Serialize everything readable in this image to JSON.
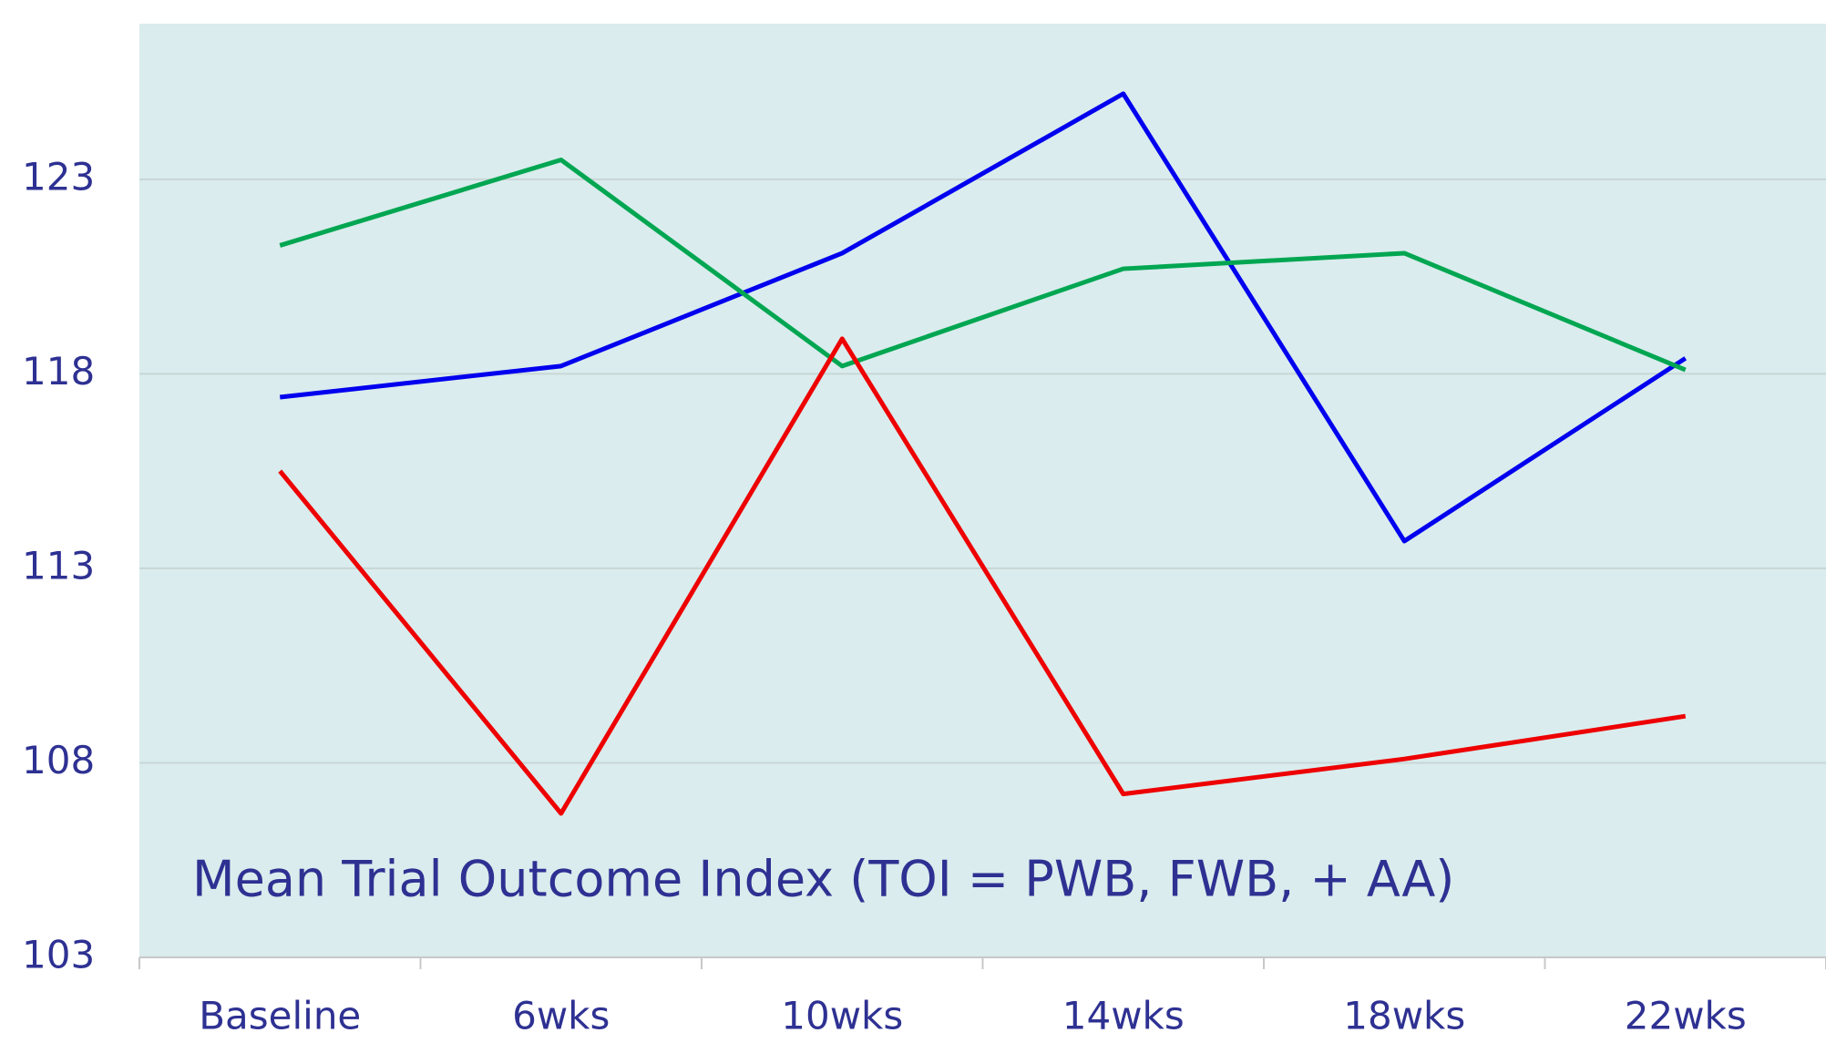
{
  "chart_data": {
    "type": "line",
    "annotation": "Mean Trial Outcome Index (TOI = PWB, FWB, + AA)",
    "categories": [
      "Baseline",
      "6wks",
      "10wks",
      "14wks",
      "18wks",
      "22wks"
    ],
    "series": [
      {
        "color": "#0000ee",
        "values": [
          117.4,
          118.2,
          121.1,
          125.2,
          113.7,
          118.4
        ]
      },
      {
        "color": "#00a651",
        "values": [
          121.3,
          123.5,
          118.2,
          120.7,
          121.1,
          118.1
        ]
      },
      {
        "color": "#ee0000",
        "values": [
          115.5,
          106.7,
          118.9,
          107.2,
          108.1,
          109.2
        ]
      }
    ],
    "ylim": [
      103,
      127
    ],
    "yticks": [
      103,
      108,
      113,
      118,
      123
    ],
    "grid": true,
    "plot_background": "#daeced"
  }
}
